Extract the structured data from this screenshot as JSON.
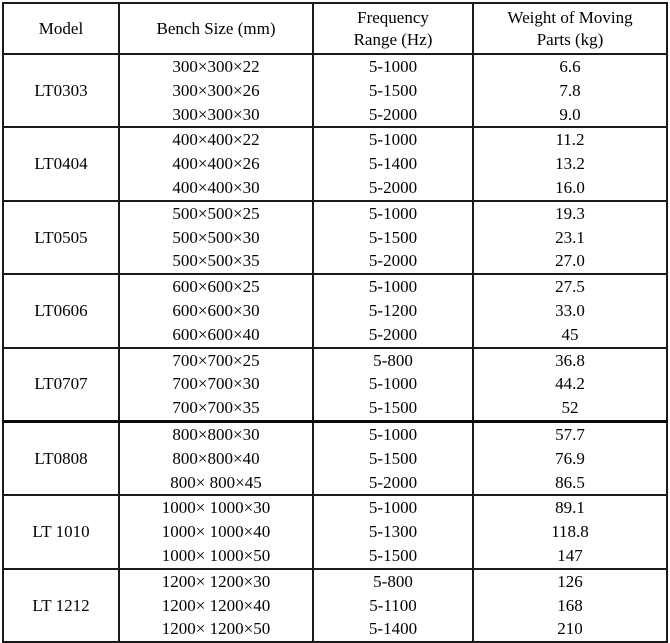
{
  "table": {
    "columns": [
      {
        "id": "model",
        "label": "Model",
        "lines": [
          "Model"
        ]
      },
      {
        "id": "bench-size",
        "label": "Bench Size (mm)",
        "lines": [
          "Bench Size (mm)"
        ]
      },
      {
        "id": "frequency-range",
        "label": "Frequency Range (Hz)",
        "lines": [
          "Frequency",
          "Range (Hz)"
        ]
      },
      {
        "id": "weight",
        "label": "Weight of Moving Parts (kg)",
        "lines": [
          "Weight of Moving",
          "Parts (kg)"
        ]
      }
    ],
    "groups": [
      {
        "model": "LT0303",
        "rows": [
          [
            "300×300×22",
            "5-1000",
            "6.6"
          ],
          [
            "300×300×26",
            "5-1500",
            "7.8"
          ],
          [
            "300×300×30",
            "5-2000",
            "9.0"
          ]
        ]
      },
      {
        "model": "LT0404",
        "rows": [
          [
            "400×400×22",
            "5-1000",
            "11.2"
          ],
          [
            "400×400×26",
            "5-1400",
            "13.2"
          ],
          [
            "400×400×30",
            "5-2000",
            "16.0"
          ]
        ]
      },
      {
        "model": "LT0505",
        "rows": [
          [
            "500×500×25",
            "5-1000",
            "19.3"
          ],
          [
            "500×500×30",
            "5-1500",
            "23.1"
          ],
          [
            "500×500×35",
            "5-2000",
            "27.0"
          ]
        ]
      },
      {
        "model": "LT0606",
        "rows": [
          [
            "600×600×25",
            "5-1000",
            "27.5"
          ],
          [
            "600×600×30",
            "5-1200",
            "33.0"
          ],
          [
            "600×600×40",
            "5-2000",
            "45"
          ]
        ]
      },
      {
        "model": "LT0707",
        "rows": [
          [
            "700×700×25",
            "5-800",
            "36.8"
          ],
          [
            "700×700×30",
            "5-1000",
            "44.2"
          ],
          [
            "700×700×35",
            "5-1500",
            "52"
          ]
        ]
      },
      {
        "model": "LT0808",
        "rows": [
          [
            "800×800×30",
            "5-1000",
            "57.7"
          ],
          [
            "800×800×40",
            "5-1500",
            "76.9"
          ],
          [
            "800× 800×45",
            "5-2000",
            "86.5"
          ]
        ]
      },
      {
        "model": "LT 1010",
        "rows": [
          [
            "1000× 1000×30",
            "5-1000",
            "89.1"
          ],
          [
            "1000× 1000×40",
            "5-1300",
            "118.8"
          ],
          [
            "1000× 1000×50",
            "5-1500",
            "147"
          ]
        ]
      },
      {
        "model": "LT 1212",
        "rows": [
          [
            "1200× 1200×30",
            "5-800",
            "126"
          ],
          [
            "1200× 1200×40",
            "5-1100",
            "168"
          ],
          [
            "1200× 1200×50",
            "5-1400",
            "210"
          ]
        ]
      }
    ]
  }
}
